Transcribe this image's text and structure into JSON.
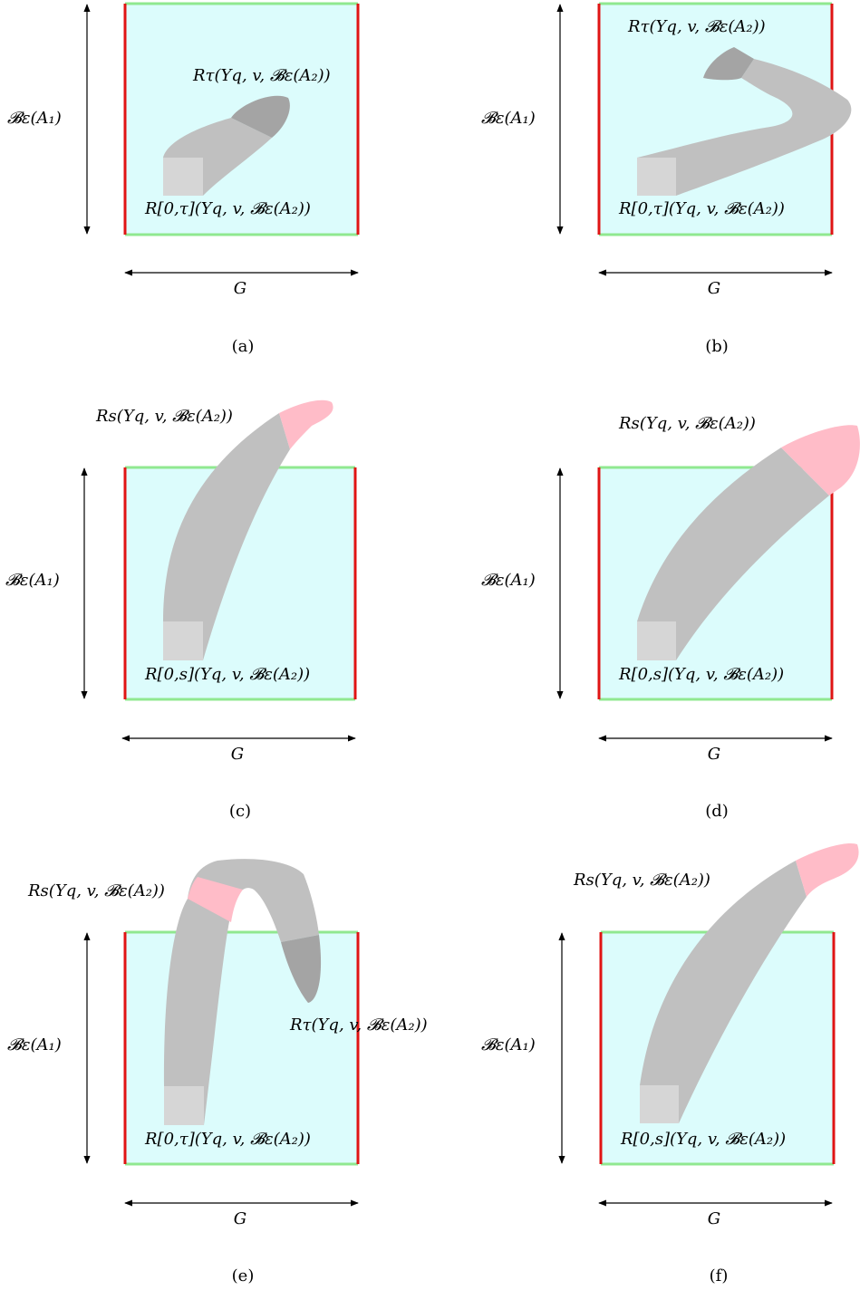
{
  "colors": {
    "box_fill": "#dcfcfc",
    "vertical_edge": "#e01414",
    "horizontal_edge": "#90e890",
    "tube": "#c0c0c0",
    "end_dark": "#a4a4a4",
    "end_pink": "#ffbcc8",
    "start_square": "#d6d6d6",
    "arrow": "#000000"
  },
  "labels": {
    "y_axis": "𝓑ε(A₁)",
    "x_axis": "G"
  },
  "panels": [
    {
      "id": "a",
      "caption": "(a)",
      "start_label": "R[0,τ](Yq, v, 𝓑ε(A₂))",
      "end_label": "Rτ(Yq, v, 𝓑ε(A₂))",
      "end_color": "end_dark"
    },
    {
      "id": "b",
      "caption": "(b)",
      "start_label": "R[0,τ](Yq, v, 𝓑ε(A₂))",
      "end_label": "Rτ(Yq, v, 𝓑ε(A₂))",
      "end_color": "end_dark"
    },
    {
      "id": "c",
      "caption": "(c)",
      "start_label": "R[0,s](Yq, v, 𝓑ε(A₂))",
      "end_label": "Rs(Yq, v, 𝓑ε(A₂))",
      "end_color": "end_pink"
    },
    {
      "id": "d",
      "caption": "(d)",
      "start_label": "R[0,s](Yq, v, 𝓑ε(A₂))",
      "end_label": "Rs(Yq, v, 𝓑ε(A₂))",
      "end_color": "end_pink"
    },
    {
      "id": "e",
      "caption": "(e)",
      "start_label": "R[0,τ](Yq, v, 𝓑ε(A₂))",
      "end_label": "Rs(Yq, v, 𝓑ε(A₂))",
      "extra_label": "Rτ(Yq, v, 𝓑ε(A₂))",
      "end_color": "end_pink"
    },
    {
      "id": "f",
      "caption": "(f)",
      "start_label": "R[0,s](Yq, v, 𝓑ε(A₂))",
      "end_label": "Rs(Yq, v, 𝓑ε(A₂))",
      "end_color": "end_pink"
    }
  ]
}
